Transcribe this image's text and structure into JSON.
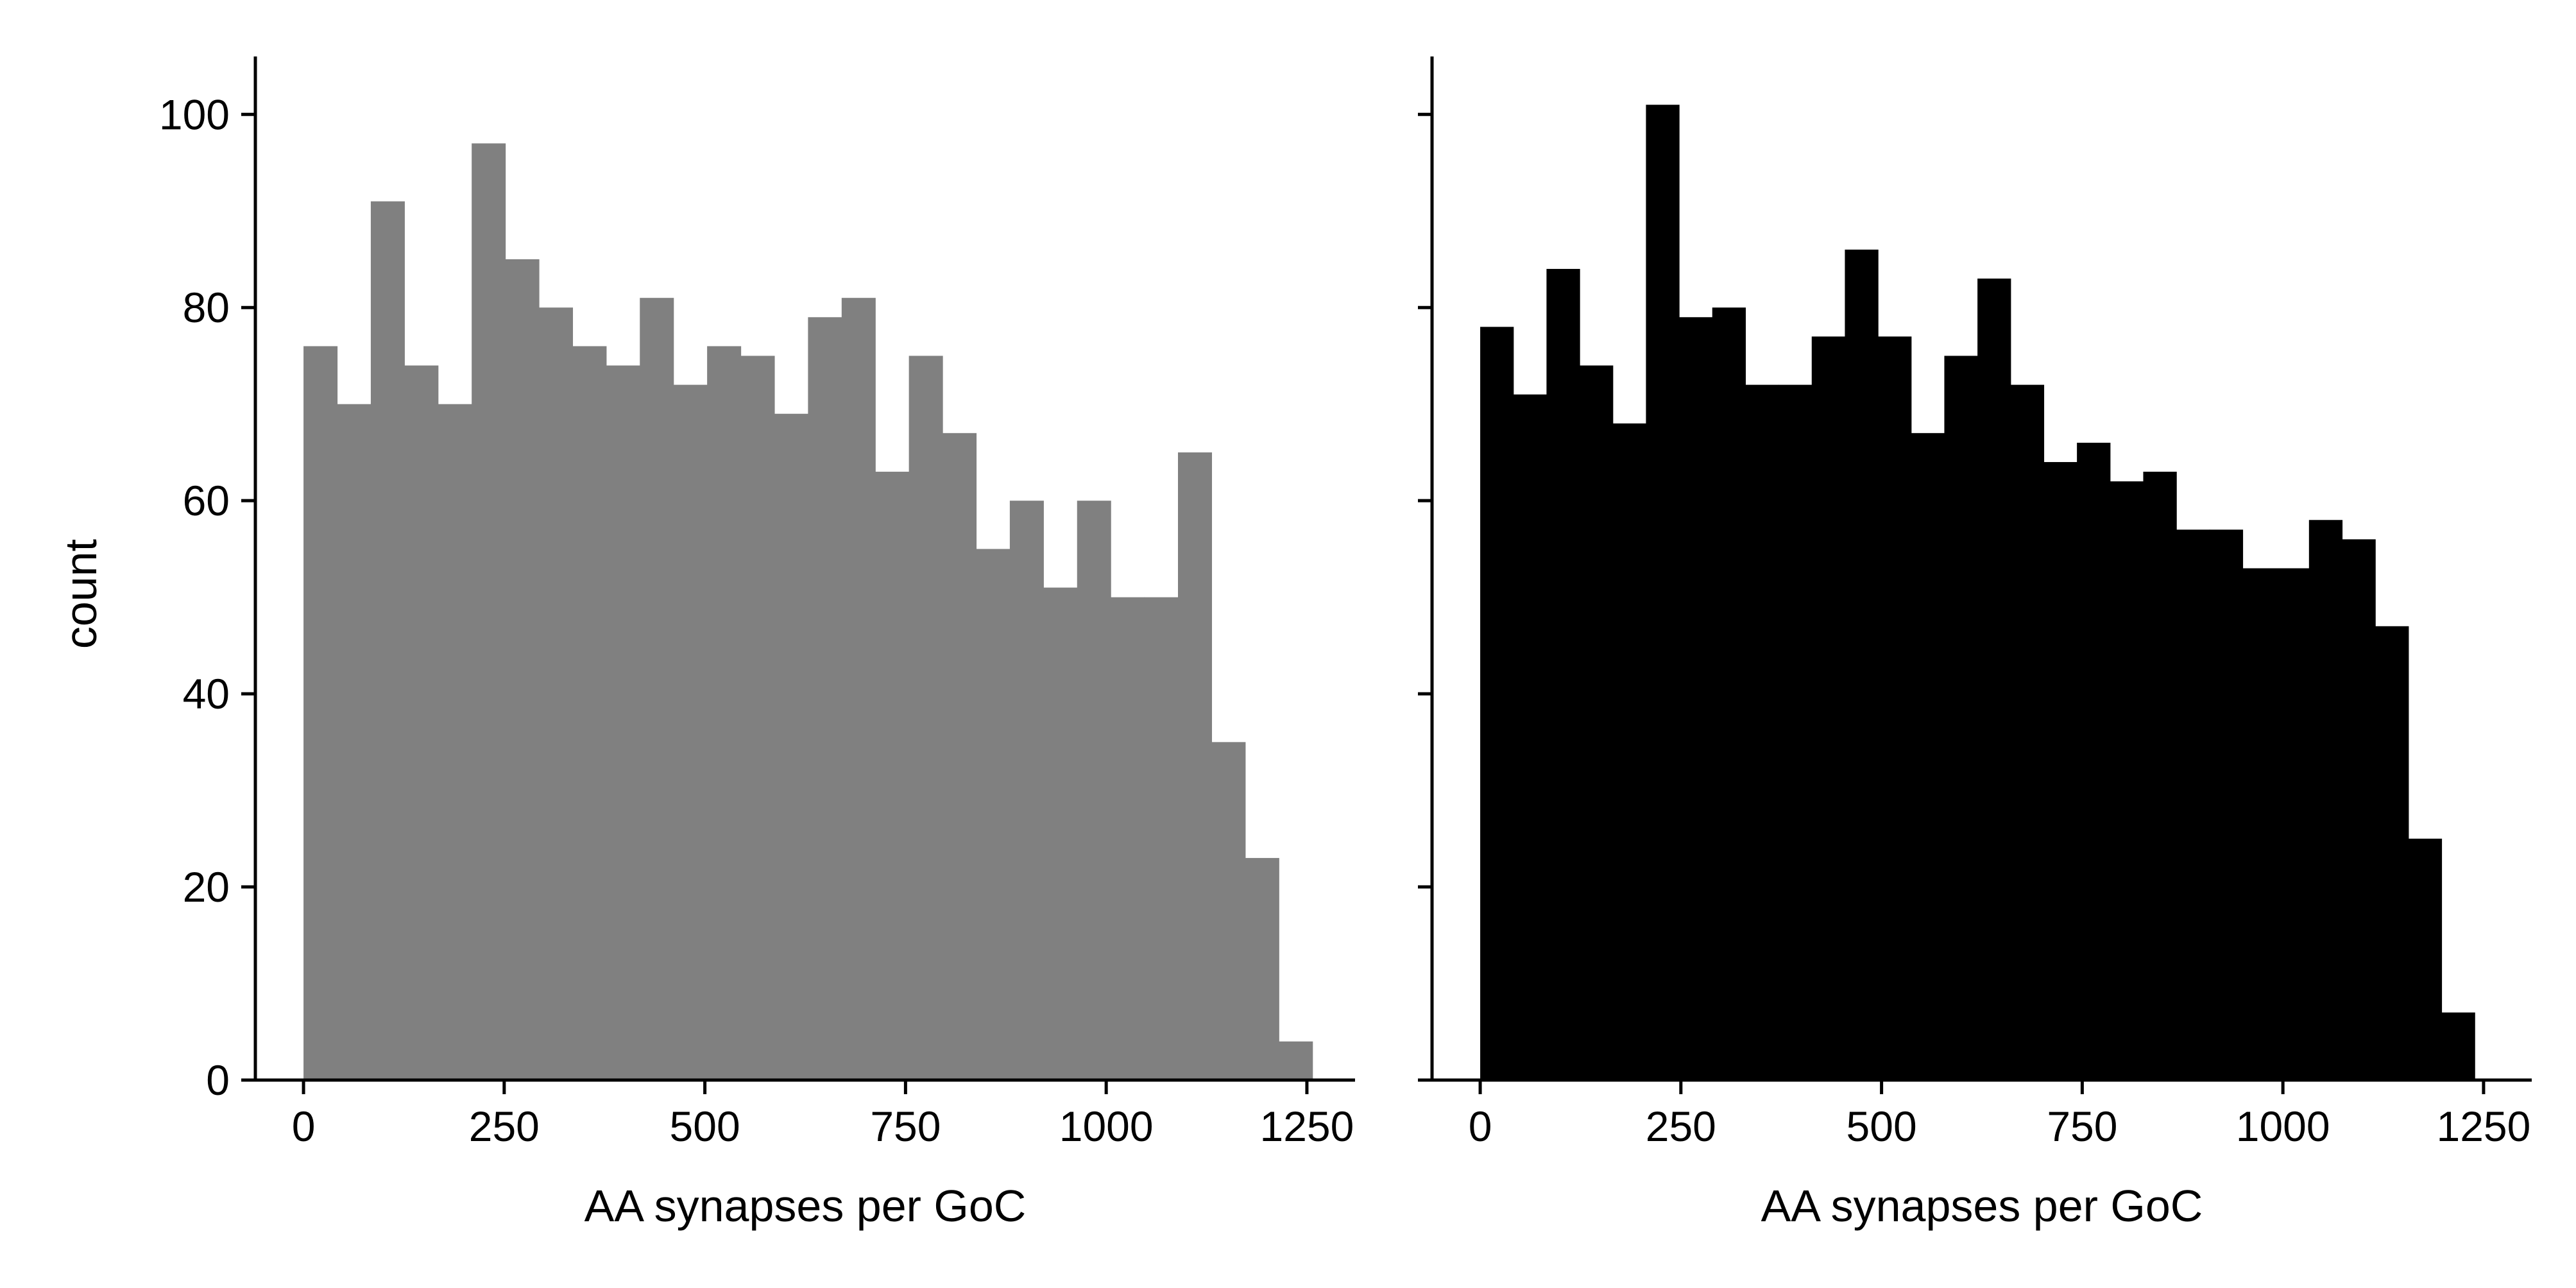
{
  "chart_data": [
    {
      "type": "bar",
      "subtype": "histogram",
      "color": "#808080",
      "xlabel": "AA synapses per GoC",
      "ylabel": "count",
      "xlim": [
        -60,
        1310
      ],
      "ylim": [
        0,
        106
      ],
      "xticks": [
        0,
        250,
        500,
        750,
        1000,
        1250
      ],
      "xtick_labels": [
        "0",
        "250",
        "500",
        "750",
        "1000",
        "1250"
      ],
      "yticks": [
        0,
        20,
        40,
        60,
        80,
        100
      ],
      "ytick_labels": [
        "0",
        "20",
        "40",
        "60",
        "80",
        "100"
      ],
      "bin_width": 41.9,
      "bin_start": 0,
      "values": [
        76,
        70,
        91,
        74,
        70,
        97,
        85,
        80,
        76,
        74,
        81,
        72,
        76,
        75,
        69,
        79,
        81,
        63,
        75,
        67,
        55,
        60,
        51,
        60,
        50,
        50,
        65,
        35,
        23,
        4
      ],
      "grid": false,
      "legend": "none"
    },
    {
      "type": "bar",
      "subtype": "histogram",
      "color": "#000000",
      "xlabel": "AA synapses per GoC",
      "ylabel": "",
      "xlim": [
        -60,
        1310
      ],
      "ylim": [
        0,
        106
      ],
      "xticks": [
        0,
        250,
        500,
        750,
        1000,
        1250
      ],
      "xtick_labels": [
        "0",
        "250",
        "500",
        "750",
        "1000",
        "1250"
      ],
      "yticks": [
        0,
        20,
        40,
        60,
        80,
        100
      ],
      "ytick_labels": [
        "",
        "",
        "",
        "",
        "",
        ""
      ],
      "bin_width": 41.3,
      "bin_start": 0,
      "values": [
        78,
        71,
        84,
        74,
        68,
        101,
        79,
        80,
        72,
        72,
        77,
        86,
        77,
        67,
        75,
        83,
        72,
        64,
        66,
        62,
        63,
        57,
        57,
        53,
        53,
        58,
        56,
        47,
        25,
        7
      ],
      "grid": false,
      "legend": "none"
    }
  ]
}
